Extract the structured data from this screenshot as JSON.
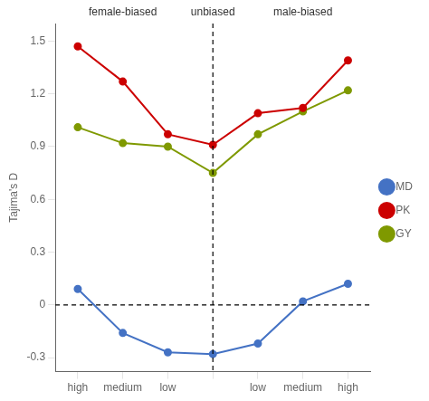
{
  "chart_data": {
    "type": "line",
    "categories": [
      "high",
      "medium",
      "low",
      null,
      "low",
      "medium",
      "high"
    ],
    "series": [
      {
        "name": "MD",
        "color": "#4472c4",
        "marker": "circle",
        "values": [
          0.09,
          -0.16,
          -0.27,
          -0.28,
          -0.22,
          0.02,
          0.12
        ]
      },
      {
        "name": "PK",
        "color": "#cc0000",
        "marker": "circle",
        "values": [
          1.47,
          1.27,
          0.97,
          0.91,
          1.09,
          1.12,
          1.39
        ]
      },
      {
        "name": "GY",
        "color": "#7f9900",
        "marker": "circle",
        "values": [
          1.01,
          0.92,
          0.9,
          0.75,
          0.97,
          1.1,
          1.22
        ]
      }
    ],
    "ylabel": "Tajima's D",
    "ylim": [
      -0.38,
      1.6
    ],
    "yticks": [
      -0.3,
      0,
      0.3,
      0.6,
      0.9,
      1.2,
      1.5
    ],
    "hline_y": 0,
    "vline_x": 3,
    "annotations": [
      {
        "text": "female-biased",
        "x": 1
      },
      {
        "text": "unbiased",
        "x": 3
      },
      {
        "text": "male-biased",
        "x": 5
      }
    ],
    "grid": false,
    "legend": "right"
  }
}
